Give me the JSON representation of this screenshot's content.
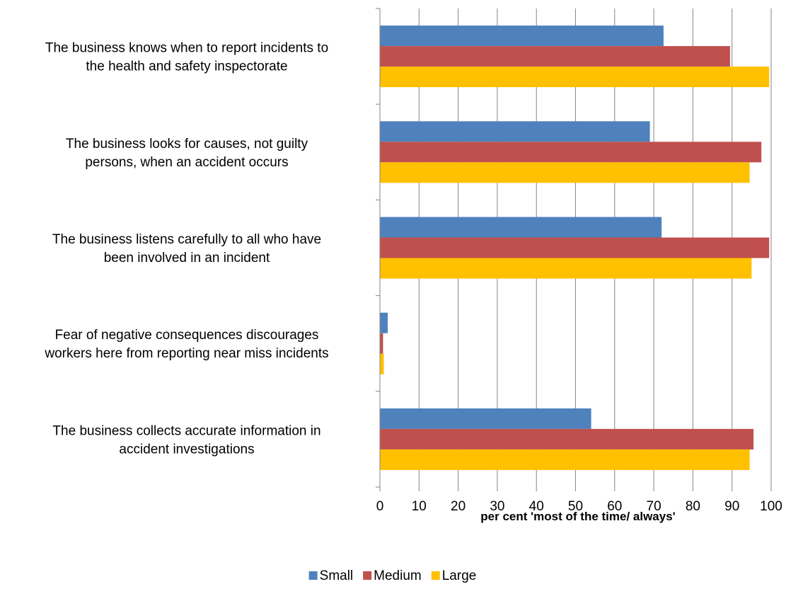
{
  "chart_data": {
    "type": "bar",
    "orientation": "horizontal",
    "categories": [
      [
        "The business knows when to report incidents to",
        "the health and safety inspectorate"
      ],
      [
        "The business looks for causes, not guilty",
        "persons, when an accident occurs"
      ],
      [
        "The business listens carefully to all who have",
        "been involved in an incident"
      ],
      [
        "Fear of negative consequences discourages",
        "workers here from reporting near miss incidents"
      ],
      [
        "The business collects accurate information in",
        "accident investigations"
      ]
    ],
    "series": [
      {
        "name": "Small",
        "color": "#4F81BD",
        "values": [
          72.5,
          69,
          72,
          2,
          54
        ]
      },
      {
        "name": "Medium",
        "color": "#C0504D",
        "values": [
          89.5,
          97.5,
          99.5,
          0.8,
          95.5
        ]
      },
      {
        "name": "Large",
        "color": "#FFC000",
        "values": [
          99.5,
          94.5,
          95,
          1,
          94.5
        ]
      }
    ],
    "xlabel": "per cent 'most of the time/ always'",
    "xlim": [
      0,
      100
    ],
    "xticks": [
      "0",
      "10",
      "20",
      "30",
      "40",
      "50",
      "60",
      "70",
      "80",
      "90",
      "100"
    ],
    "grid": "vertical",
    "legend": "bottom"
  }
}
